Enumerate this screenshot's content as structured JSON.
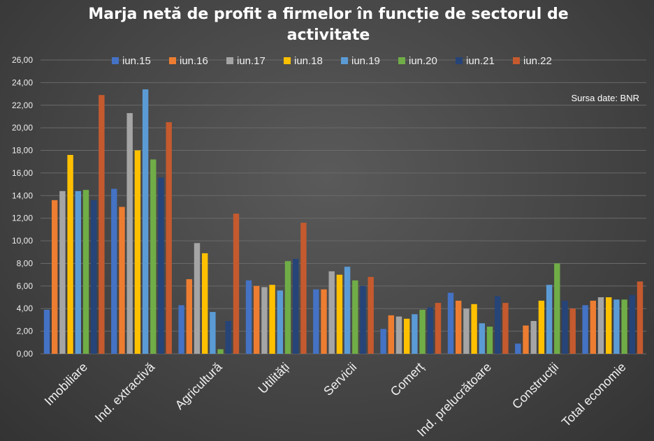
{
  "chart_data": {
    "type": "bar",
    "title_line1": "Marja  netă de profit  a firmelor  în funcție de sectorul  de",
    "title_line2": "activitate",
    "source_note": "Sursa date: BNR",
    "categories": [
      "Imobiliare",
      "Ind. extractivă",
      "Agricultură",
      "Utilități",
      "Servicii",
      "Comerț",
      "Ind. prelucrătoare",
      "Construcții",
      "Total economie"
    ],
    "ylim": [
      0,
      26
    ],
    "yticks": [
      "0,00",
      "2,00",
      "4,00",
      "6,00",
      "8,00",
      "10,00",
      "12,00",
      "14,00",
      "16,00",
      "18,00",
      "20,00",
      "22,00",
      "24,00",
      "26,00"
    ],
    "grid": true,
    "legend_position": "top",
    "series": [
      {
        "name": "iun.15",
        "color": "#4472c4",
        "values": [
          3.9,
          14.6,
          4.3,
          6.5,
          5.7,
          2.2,
          5.4,
          0.9,
          4.3
        ]
      },
      {
        "name": "iun.16",
        "color": "#ed7d31",
        "values": [
          13.6,
          13.0,
          6.6,
          6.0,
          5.7,
          3.4,
          4.7,
          2.5,
          4.7
        ]
      },
      {
        "name": "iun.17",
        "color": "#a5a5a5",
        "values": [
          14.4,
          21.3,
          9.8,
          5.9,
          7.3,
          3.3,
          4.0,
          2.9,
          5.0
        ]
      },
      {
        "name": "iun.18",
        "color": "#ffc000",
        "values": [
          17.6,
          18.0,
          8.9,
          6.1,
          7.0,
          3.1,
          4.4,
          4.7,
          5.0
        ]
      },
      {
        "name": "iun.19",
        "color": "#5b9bd5",
        "values": [
          14.4,
          23.4,
          3.7,
          5.6,
          7.7,
          3.5,
          2.7,
          6.1,
          4.8
        ]
      },
      {
        "name": "iun.20",
        "color": "#70ad47",
        "values": [
          14.5,
          17.2,
          0.4,
          8.2,
          6.5,
          3.9,
          2.4,
          8.0,
          4.8
        ]
      },
      {
        "name": "iun.21",
        "color": "#264478",
        "values": [
          13.6,
          15.6,
          2.9,
          8.4,
          6.0,
          4.1,
          5.1,
          4.7,
          5.2
        ]
      },
      {
        "name": "iun.22",
        "color": "#c55a2e",
        "values": [
          22.9,
          20.5,
          12.4,
          11.6,
          6.8,
          4.5,
          4.5,
          4.0,
          6.4
        ]
      }
    ]
  }
}
